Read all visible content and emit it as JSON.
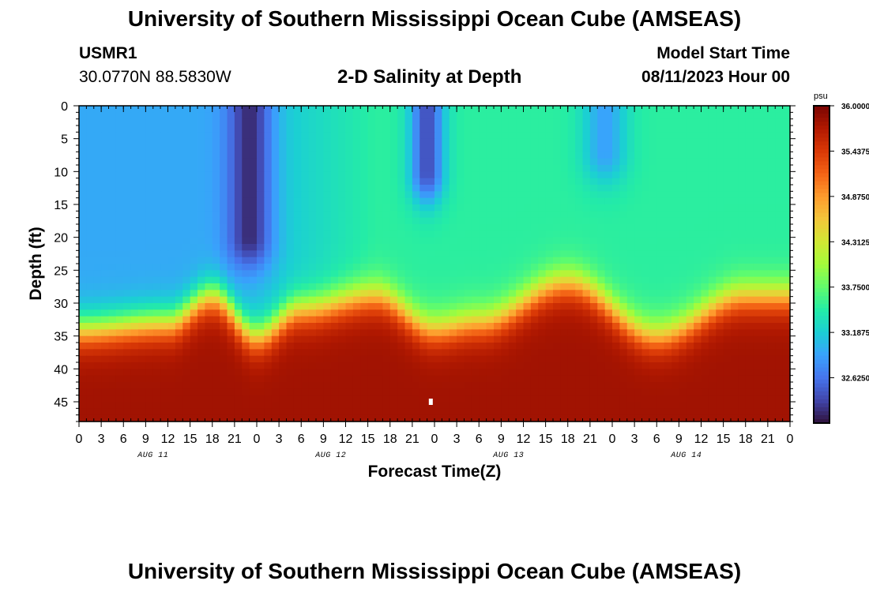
{
  "page": {
    "title": "University of Southern Mississippi Ocean Cube (AMSEAS)",
    "station_id": "USMR1",
    "station_location": "30.0770N  88.5830W",
    "subtitle": "2-D Salinity at Depth",
    "model_start_label": "Model Start Time",
    "model_start_value": "08/11/2023 Hour 00",
    "footer_title": "University of Southern Mississippi Ocean Cube (AMSEAS)"
  },
  "chart_data": {
    "type": "heatmap",
    "title": "2-D Salinity at Depth",
    "xlabel": "Forecast Time(Z)",
    "ylabel": "Depth (ft)",
    "x_tick_labels": [
      "0",
      "3",
      "6",
      "9",
      "12",
      "15",
      "18",
      "21",
      "0",
      "3",
      "6",
      "9",
      "12",
      "15",
      "18",
      "21",
      "0",
      "3",
      "6",
      "9",
      "12",
      "15",
      "18",
      "21",
      "0",
      "3",
      "6",
      "9",
      "12",
      "15",
      "18",
      "21",
      "0"
    ],
    "x_tick_hours": [
      0,
      3,
      6,
      9,
      12,
      15,
      18,
      21,
      24,
      27,
      30,
      33,
      36,
      39,
      42,
      45,
      48,
      51,
      54,
      57,
      60,
      63,
      66,
      69,
      72,
      75,
      78,
      81,
      84,
      87,
      90,
      93,
      96
    ],
    "x_range_hours": [
      0,
      96
    ],
    "day_labels": [
      "AUG 11",
      "AUG 12",
      "AUG 13",
      "AUG 14"
    ],
    "day_label_hours": [
      10,
      34,
      58,
      82
    ],
    "y_tick_labels": [
      "0",
      "5",
      "10",
      "15",
      "20",
      "25",
      "30",
      "35",
      "40",
      "45"
    ],
    "y_ticks": [
      0,
      5,
      10,
      15,
      20,
      25,
      30,
      35,
      40,
      45
    ],
    "y_range_ft": [
      0,
      48
    ],
    "y_inverted": true,
    "colorbar": {
      "unit": "psu",
      "min": 32.0625,
      "max": 36.0,
      "tick_labels": [
        "36.0000",
        "35.4375",
        "34.8750",
        "34.3125",
        "33.7500",
        "33.1875",
        "32.6250"
      ],
      "tick_values": [
        36.0,
        35.4375,
        34.875,
        34.3125,
        33.75,
        33.1875,
        32.625
      ],
      "colormap": [
        "#30123b",
        "#4145ab",
        "#4675ed",
        "#39a2fc",
        "#1bcfd4",
        "#24eca6",
        "#61fc6c",
        "#a4fc3b",
        "#d1e834",
        "#f3c63a",
        "#fe9b2d",
        "#f36315",
        "#d93806",
        "#b11901",
        "#7a0403"
      ]
    },
    "salinity_model": {
      "surface_base_psu": 33.1,
      "deep_psu": 35.8,
      "interface_depth_ft_by_hour": [
        [
          0,
          34
        ],
        [
          12,
          33
        ],
        [
          18,
          29
        ],
        [
          24,
          35
        ],
        [
          30,
          31
        ],
        [
          40,
          29
        ],
        [
          48,
          34
        ],
        [
          54,
          33
        ],
        [
          66,
          27
        ],
        [
          78,
          35
        ],
        [
          90,
          29
        ],
        [
          96,
          29
        ]
      ],
      "fresh_plumes": [
        {
          "center_hour": 23,
          "width_hours": 3.0,
          "depth_extent_ft": 20,
          "min_psu": 32.2
        },
        {
          "center_hour": 47,
          "width_hours": 2.3,
          "depth_extent_ft": 10,
          "min_psu": 32.4
        },
        {
          "center_hour": 71,
          "width_hours": 3.0,
          "depth_extent_ft": 7,
          "min_psu": 32.9
        }
      ],
      "left_fresh_zone": {
        "end_hour": 20,
        "psu": 32.95
      },
      "right_brackish_zone": {
        "start_hour": 40,
        "psu": 33.5
      }
    },
    "marker": {
      "hour": 47.5,
      "depth_ft": 45
    }
  }
}
